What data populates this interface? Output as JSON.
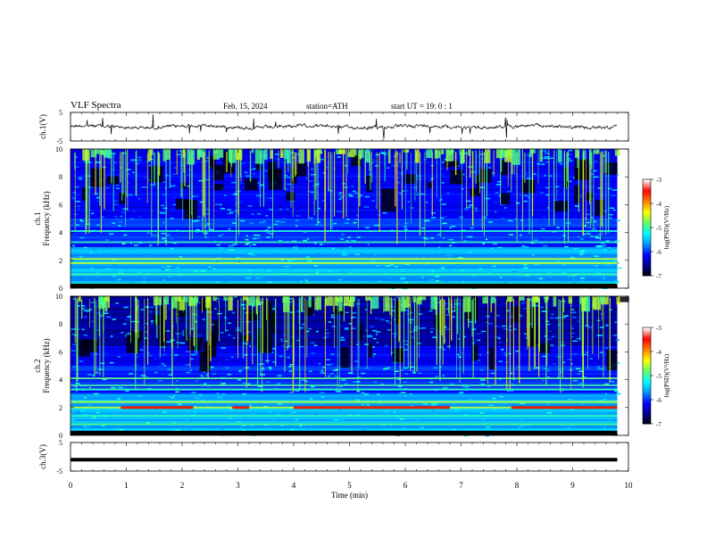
{
  "header": {
    "title": "VLF  Spectra",
    "date": "Feb. 15, 2024",
    "station": "station=ATH",
    "start": "start  UT  =    19: 0   : 1"
  },
  "chart_data": [
    {
      "type": "line",
      "panel": "ch1-waveform",
      "ylabel": "ch.1(V)",
      "yticks": [
        "5",
        "-5"
      ],
      "ylim": [
        -5,
        5
      ],
      "xlim": [
        0,
        10
      ],
      "x_extent_min": 9.8,
      "approx_level": 0,
      "approx_amplitude": 0.6,
      "color": "#000000"
    },
    {
      "type": "heatmap",
      "panel": "ch1-spectrogram",
      "channel_label": "ch.1",
      "ylabel": "Frequency  (kHz)",
      "yticks": [
        "0",
        "2",
        "4",
        "6",
        "8",
        "10"
      ],
      "ylim": [
        0,
        10
      ],
      "xlim": [
        0,
        10
      ],
      "colorbar": {
        "label": "log(PSD)(V²/Hz)",
        "ticks": [
          "-3",
          "-4",
          "-5",
          "-6",
          "-7"
        ],
        "range": [
          -7,
          -3
        ]
      },
      "bright_bands_khz": [
        0.3,
        1.0,
        1.8,
        2.1,
        3.3,
        4.1
      ]
    },
    {
      "type": "heatmap",
      "panel": "ch2-spectrogram",
      "channel_label": "ch.2",
      "ylabel": "Frequency  (kHz)",
      "yticks": [
        "0",
        "2",
        "4",
        "6",
        "8",
        "10"
      ],
      "ylim": [
        0,
        10
      ],
      "xlim": [
        0,
        10
      ],
      "colorbar": {
        "label": "log(PSD)(V²/Hz)",
        "ticks": [
          "-3",
          "-4",
          "-5",
          "-6",
          "-7"
        ],
        "range": [
          -7,
          -3
        ]
      },
      "bright_bands_khz": [
        0.8,
        1.4,
        2.0,
        2.4,
        3.3,
        3.6,
        4.1
      ]
    },
    {
      "type": "line",
      "panel": "ch3-waveform",
      "ylabel": "ch.3(V)",
      "yticks": [
        "5",
        "-5"
      ],
      "ylim": [
        -5,
        5
      ],
      "xlim": [
        0,
        10
      ],
      "x_extent_min": 9.8,
      "approx_level": -1,
      "color": "#000000"
    }
  ],
  "xaxis": {
    "label": "Time  (min)",
    "ticks": [
      "0",
      "1",
      "2",
      "3",
      "4",
      "5",
      "6",
      "7",
      "8",
      "9",
      "10"
    ]
  },
  "colormap": [
    "#000000",
    "#00008c",
    "#0000ff",
    "#0096ff",
    "#00ffff",
    "#64ff64",
    "#ffff00",
    "#ff8000",
    "#ff0000",
    "#ffffff"
  ]
}
